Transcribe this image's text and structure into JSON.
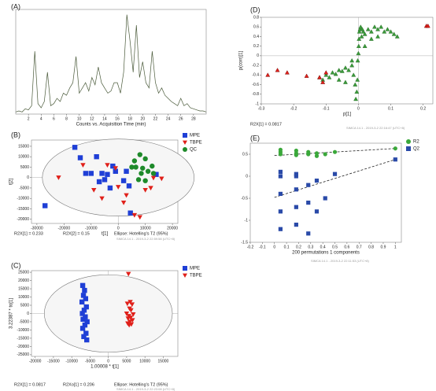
{
  "chart_data": [
    {
      "type": "line",
      "title": "(A)",
      "x_label": "Counts vs. Acquisition Time (min)",
      "color": "#4a5a3a",
      "x": [
        0,
        0.5,
        1,
        1.5,
        2,
        2.5,
        3,
        3.5,
        4,
        4.5,
        5,
        5.5,
        6,
        6.5,
        7,
        7.5,
        8,
        8.5,
        9,
        9.5,
        10,
        10.5,
        11,
        11.5,
        12,
        12.5,
        13,
        13.5,
        14,
        14.5,
        15,
        15.5,
        16,
        16.5,
        17,
        17.5,
        18,
        18.5,
        19,
        19.5,
        20,
        20.5,
        21,
        21.5,
        22,
        22.5,
        23,
        23.5,
        24,
        24.5,
        25,
        25.5,
        26,
        26.5,
        27,
        27.5,
        28,
        28.5,
        29,
        29.5,
        30
      ],
      "values": [
        2,
        3,
        2,
        5,
        4,
        8,
        60,
        10,
        6,
        12,
        40,
        8,
        10,
        15,
        12,
        20,
        18,
        25,
        30,
        55,
        20,
        25,
        30,
        22,
        35,
        28,
        45,
        30,
        25,
        20,
        22,
        30,
        30,
        20,
        40,
        95,
        70,
        40,
        85,
        35,
        50,
        30,
        25,
        60,
        30,
        20,
        25,
        18,
        15,
        12,
        10,
        8,
        15,
        8,
        10,
        6,
        5,
        4,
        3,
        3,
        2
      ],
      "xlim": [
        0,
        30
      ],
      "ylim": [
        0,
        100
      ],
      "xticks": [
        2,
        4,
        6,
        8,
        10,
        12,
        14,
        16,
        18,
        20,
        22,
        24,
        26,
        28
      ]
    },
    {
      "type": "scatter",
      "title": "(B)",
      "x_label": "t[1]",
      "y_label": "t[2]",
      "xlim": [
        -32000,
        22000
      ],
      "ylim": [
        -22000,
        18000
      ],
      "xticks": [
        -30000,
        -20000,
        -10000,
        0,
        10000,
        20000
      ],
      "yticks": [
        -20000,
        -15000,
        -10000,
        -5000,
        0,
        5000,
        10000,
        15000
      ],
      "ellipse_radii": [
        28000,
        18500
      ],
      "zero_lines": true,
      "series": [
        {
          "name": "MPE",
          "color": "#1f3fd6",
          "marker": "square",
          "x": [
            -27000,
            -16000,
            -14000,
            -12000,
            -10000,
            -8000,
            -6000,
            -5000,
            -4000,
            -2000,
            -1000,
            -7000,
            2000,
            3000,
            4000,
            4500,
            14000,
            -3000
          ],
          "values": [
            -13500,
            14500,
            9500,
            2000,
            2000,
            10000,
            2000,
            -1000,
            1500,
            5500,
            3000,
            -2000,
            -1500,
            3000,
            -4000,
            -17000,
            1500,
            -5000
          ]
        },
        {
          "name": "TBPE",
          "color": "#e0201a",
          "marker": "triangle-down",
          "x": [
            -22000,
            -13000,
            -9000,
            -6000,
            -4000,
            0,
            2000,
            3000,
            6000,
            8000,
            10000,
            12000,
            13000,
            16000,
            -1000
          ],
          "values": [
            0,
            6000,
            -6000,
            -10000,
            6000,
            -4500,
            -12000,
            -8500,
            -18000,
            -19000,
            -6000,
            -5000,
            -200,
            -500,
            4500
          ]
        },
        {
          "name": "QC",
          "color": "#1e8a2a",
          "marker": "circle",
          "x": [
            6000,
            8000,
            10000,
            6500,
            9000,
            11000,
            8500,
            12500,
            7500,
            5000,
            10000,
            13000
          ],
          "values": [
            8000,
            11000,
            9000,
            5000,
            4500,
            3000,
            2000,
            5500,
            -1000,
            5000,
            -1500,
            2000
          ]
        }
      ],
      "footer": [
        "R2X[1] = 0.233",
        "R2X[2] = 0.15",
        "Ellipse: Hotelling's T2 (95%)",
        "SIMCA 14.1 - 2019-3-2 22:59:58 (UTC+8)"
      ]
    },
    {
      "type": "scatter",
      "title": "(C)",
      "x_label": "1.00008 * t[1]",
      "y_label": "3.22387 * to[1]",
      "xlim": [
        -21000,
        19000
      ],
      "ylim": [
        -26000,
        26000
      ],
      "xticks": [
        -20000,
        -15000,
        -10000,
        -5000,
        0,
        5000,
        10000,
        15000
      ],
      "yticks": [
        -25000,
        -20000,
        -15000,
        -10000,
        -5000,
        0,
        5000,
        10000,
        15000,
        20000,
        25000
      ],
      "ellipse_radii": [
        17500,
        23500
      ],
      "zero_lines": true,
      "series": [
        {
          "name": "MPE",
          "color": "#1f3fd6",
          "marker": "square",
          "x": [
            -7000,
            -6500,
            -6800,
            -6200,
            -7200,
            -6000,
            -6600,
            -7100,
            -6300,
            -6900,
            -5800,
            -6400,
            -7000,
            -6100,
            -6700,
            -5900
          ],
          "values": [
            17000,
            14000,
            11000,
            9000,
            7000,
            4000,
            2000,
            0,
            -2000,
            -3500,
            -5000,
            -7000,
            -9000,
            -12000,
            -14000,
            -16000
          ]
        },
        {
          "name": "TBPE",
          "color": "#e0201a",
          "marker": "triangle-down",
          "x": [
            5500,
            6000,
            5200,
            6500,
            5800,
            6200,
            5000,
            6800,
            5600,
            6100,
            5400,
            6600,
            5900,
            5300,
            6300,
            5700
          ],
          "values": [
            24000,
            7000,
            6000,
            5500,
            3000,
            2000,
            0,
            -500,
            -1500,
            -2500,
            -3000,
            -4000,
            -5000,
            -6000,
            -6500,
            -7000
          ]
        }
      ],
      "footer": [
        "R2X[1] = 0.0817",
        "R2Xo[1] = 0.206",
        "Ellipse: Hotelling's T2 (95%)",
        "SIMCA 14.1 - 2019-3-2 22:23:08 (UTC+8)"
      ]
    },
    {
      "type": "scatter",
      "title": "(D)",
      "x_label": "p[1]",
      "y_label": "p(corr)[1]",
      "xlim": [
        -0.3,
        0.23
      ],
      "ylim": [
        -1,
        0.8
      ],
      "xticks": [
        -0.3,
        -0.2,
        -0.1,
        0,
        0.1,
        0.2
      ],
      "yticks": [
        -1,
        -0.8,
        -0.6,
        -0.4,
        -0.2,
        0,
        0.2,
        0.4,
        0.6,
        0.8
      ],
      "zero_lines": true,
      "series": [
        {
          "color": "#3a9a3a",
          "marker": "triangle",
          "x": [
            -0.12,
            -0.11,
            -0.1,
            -0.09,
            -0.08,
            -0.07,
            -0.06,
            -0.05,
            -0.04,
            -0.03,
            -0.02,
            -0.015,
            -0.01,
            -0.008,
            -0.005,
            -0.003,
            -0.002,
            0,
            0.001,
            0.002,
            0.003,
            0.005,
            0.007,
            0.01,
            0.012,
            0.015,
            0.02,
            0.03,
            0.04,
            0.05,
            0.06,
            0.07,
            0.08,
            0.09,
            0.1,
            0.11,
            0.12,
            -0.06,
            -0.04,
            0.04,
            0.06,
            -0.02,
            0.02
          ],
          "values": [
            -0.45,
            -0.5,
            -0.4,
            -0.45,
            -0.35,
            -0.38,
            -0.3,
            -0.32,
            -0.25,
            -0.3,
            -0.2,
            -0.4,
            -0.6,
            -0.9,
            -0.75,
            -0.5,
            -0.1,
            0.05,
            0.2,
            0.35,
            0.5,
            0.55,
            0.6,
            0.4,
            0.55,
            0.5,
            0.45,
            0.55,
            0.5,
            0.6,
            0.55,
            0.6,
            0.5,
            0.55,
            0.5,
            0.45,
            0.4,
            -0.5,
            -0.55,
            0.35,
            0.4,
            -0.1,
            0.2
          ]
        },
        {
          "color": "#e0201a",
          "marker": "triangle",
          "x": [
            -0.28,
            -0.25,
            -0.22,
            -0.16,
            -0.12,
            -0.11,
            -0.1,
            0.21,
            0.215
          ],
          "values": [
            -0.4,
            -0.3,
            -0.35,
            -0.42,
            -0.45,
            -0.55,
            -0.35,
            0.62,
            0.62
          ]
        }
      ],
      "footer": [
        "R2X[1] = 0.0817",
        "SIMCA 14.1 - 2019-3-2 22:16:47 (UTC+8)"
      ]
    },
    {
      "type": "scatter",
      "title": "(E)",
      "x_label": "200 permutations 1 components",
      "xlim": [
        -0.2,
        1.05
      ],
      "ylim": [
        -1.5,
        0.75
      ],
      "xticks": [
        -0.2,
        -0.1,
        0,
        0.1,
        0.2,
        0.3,
        0.4,
        0.5,
        0.6,
        0.7,
        0.8,
        0.9,
        1
      ],
      "yticks": [
        -1.5,
        -1,
        -0.5,
        0,
        0.5
      ],
      "zero_lines": false,
      "series": [
        {
          "name": "R2",
          "color": "#3aa83a",
          "marker": "circle",
          "x": [
            1,
            0.05,
            0.05,
            0.05,
            0.18,
            0.18,
            0.18,
            0.28,
            0.28,
            0.35,
            0.35,
            0.42,
            0.5
          ],
          "values": [
            0.63,
            0.55,
            0.5,
            0.6,
            0.52,
            0.58,
            0.48,
            0.55,
            0.5,
            0.52,
            0.46,
            0.5,
            0.55
          ]
        },
        {
          "name": "Q2",
          "color": "#2a4aa8",
          "marker": "square",
          "x": [
            1,
            0.05,
            0.05,
            0.05,
            0.05,
            0.05,
            0.18,
            0.18,
            0.18,
            0.18,
            0.18,
            0.28,
            0.28,
            0.28,
            0.35,
            0.35,
            0.42,
            0.5
          ],
          "values": [
            0.38,
            -1.2,
            -0.8,
            -0.4,
            0,
            0.1,
            -1.1,
            -0.7,
            -0.3,
            0,
            0.05,
            -1.3,
            -0.6,
            -0.2,
            -0.8,
            -0.1,
            -0.5,
            0.05
          ]
        }
      ],
      "fit_lines": [
        {
          "x": [
            0,
            1
          ],
          "values": [
            0.47,
            0.63
          ]
        },
        {
          "x": [
            0,
            1
          ],
          "values": [
            -0.48,
            0.38
          ]
        }
      ],
      "footer": [
        "SIMCA 14.1 - 2019-3-2 22:11:53 (UTC+8)"
      ]
    }
  ]
}
